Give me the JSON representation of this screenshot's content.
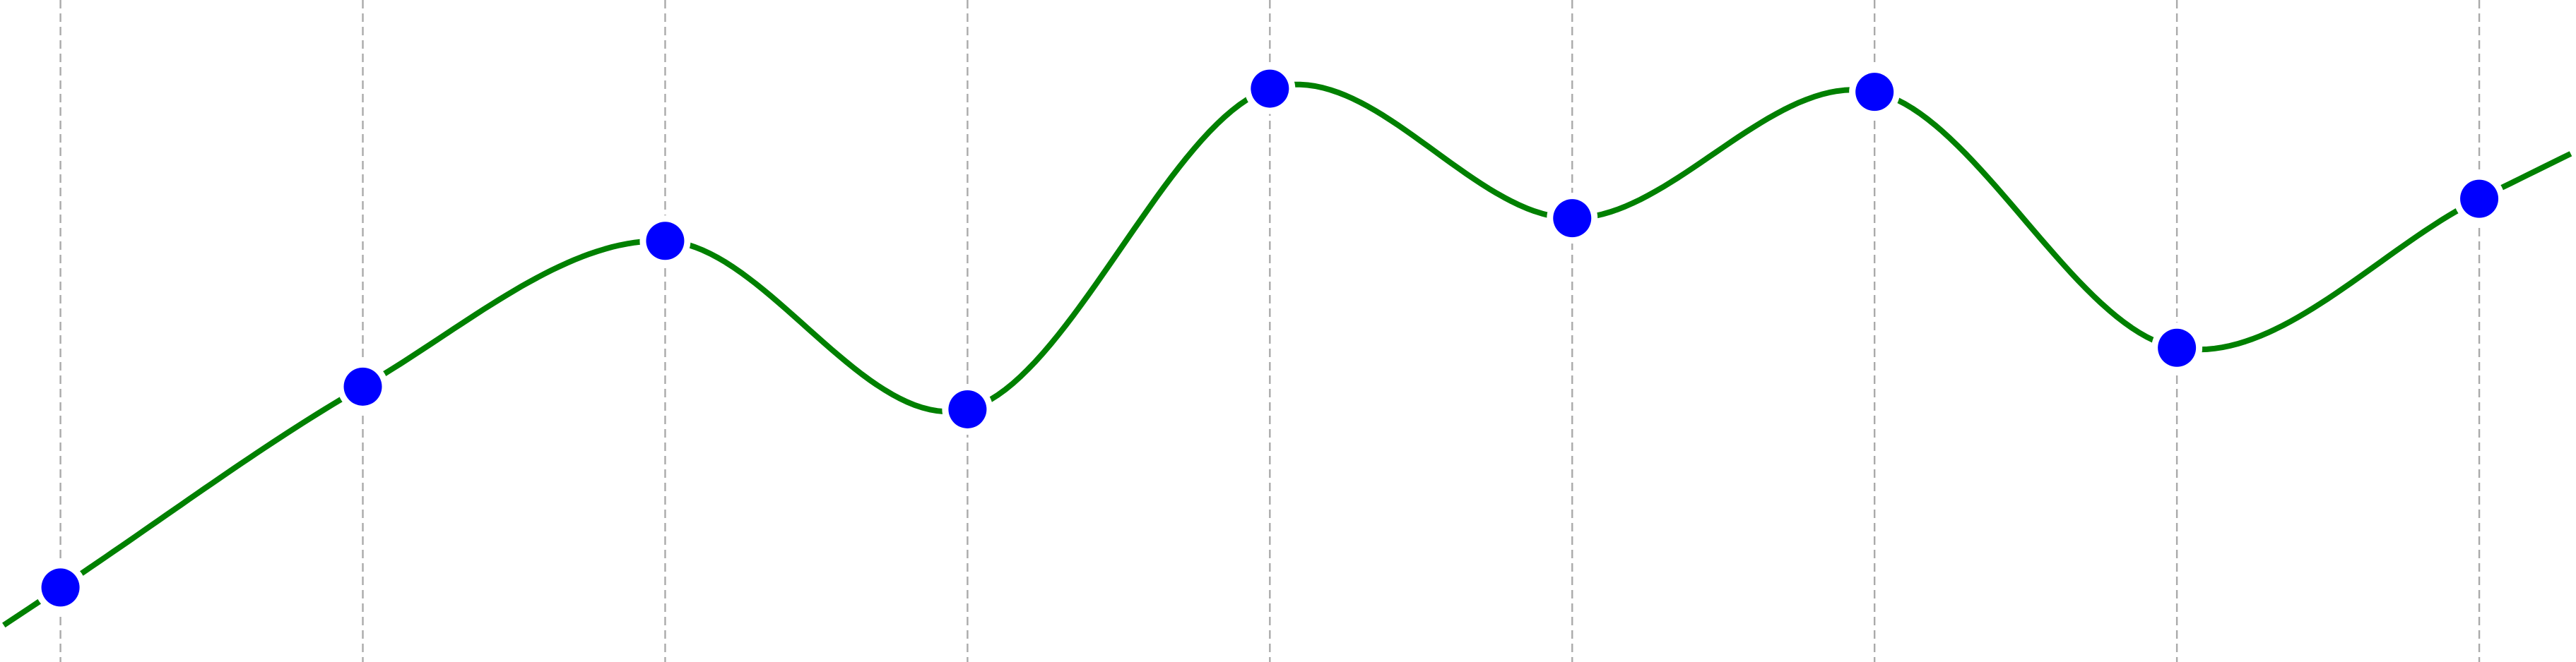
{
  "chart_data": {
    "type": "line",
    "title": "",
    "xlabel": "",
    "ylabel": "",
    "x": [
      1,
      2,
      3,
      4,
      5,
      6,
      7,
      8,
      9
    ],
    "xlim": [
      0.8,
      9.32
    ],
    "ylim": [
      0,
      1
    ],
    "grid": {
      "vertical": true,
      "horizontal": false,
      "style": "dashed",
      "color": "#aaaaaa"
    },
    "series": [
      {
        "values": [
          0.115,
          0.425,
          0.65,
          0.39,
          0.885,
          0.685,
          0.88,
          0.485,
          0.715
        ],
        "line_color": "#008000",
        "marker_color": "#0000ff",
        "smooth": true,
        "extends_past_ends": true
      }
    ]
  }
}
